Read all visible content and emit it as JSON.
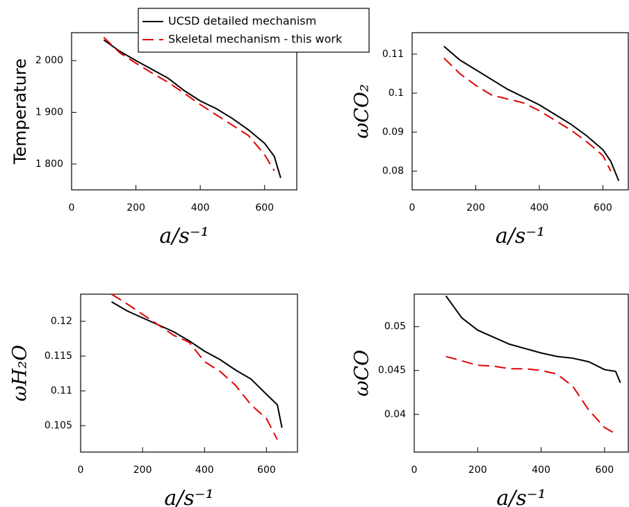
{
  "chart_data": [
    {
      "type": "line",
      "ylabel": "Temperature",
      "xlabel": "a/s⁻¹",
      "legend": "upper center",
      "x": [
        100,
        150,
        200,
        250,
        300,
        350,
        400,
        450,
        500,
        550,
        600,
        630,
        650
      ],
      "xlim": [
        0,
        700
      ],
      "xticks": [
        0,
        200,
        400,
        600
      ],
      "ylim": [
        1750,
        2054
      ],
      "yticks": [
        {
          "value": 1800,
          "label": "1 800"
        },
        {
          "value": 1900,
          "label": "1 900"
        },
        {
          "value": 2000,
          "label": "2 000"
        }
      ],
      "series": [
        {
          "name": "UCSD detailed mechanism",
          "color": "#000000",
          "dash": false,
          "values": [
            2040,
            2018,
            2000,
            1983,
            1966,
            1942,
            1922,
            1907,
            1888,
            1866,
            1840,
            1815,
            1773
          ]
        },
        {
          "name": "Skeletal mechanism - this work",
          "color": "#e00000",
          "dash": true,
          "values": [
            2045,
            2015,
            1995,
            1976,
            1958,
            1937,
            1915,
            1895,
            1875,
            1855,
            1818,
            1787,
            null
          ]
        }
      ]
    },
    {
      "type": "line",
      "ylabel": "ωCO₂",
      "xlabel": "a/s⁻¹",
      "x": [
        100,
        150,
        200,
        250,
        300,
        350,
        400,
        450,
        500,
        550,
        600,
        625,
        650
      ],
      "xlim": [
        0,
        680
      ],
      "xticks": [
        0,
        200,
        400,
        600
      ],
      "ylim": [
        0.0752,
        0.1155
      ],
      "yticks": [
        0.08,
        0.09,
        0.1,
        0.11
      ],
      "series": [
        {
          "color": "#000000",
          "dash": false,
          "values": [
            0.112,
            0.1085,
            0.106,
            0.1035,
            0.101,
            0.099,
            0.097,
            0.0945,
            0.092,
            0.089,
            0.0855,
            0.0825,
            0.0775
          ]
        },
        {
          "color": "#e00000",
          "dash": true,
          "values": [
            0.109,
            0.105,
            0.102,
            0.0995,
            0.0985,
            0.0975,
            0.0955,
            0.093,
            0.0905,
            0.0875,
            0.084,
            0.08,
            null
          ]
        }
      ]
    },
    {
      "type": "line",
      "ylabel": "ωH₂O",
      "xlabel": "a/s⁻¹",
      "x": [
        100,
        150,
        200,
        250,
        300,
        350,
        400,
        450,
        500,
        550,
        600,
        635,
        650
      ],
      "xlim": [
        0,
        700
      ],
      "xticks": [
        0,
        200,
        400,
        600
      ],
      "ylim": [
        0.1012,
        0.1239
      ],
      "yticks": [
        0.105,
        0.11,
        0.115,
        0.12
      ],
      "series": [
        {
          "color": "#000000",
          "dash": false,
          "values": [
            0.1228,
            0.1215,
            0.1205,
            0.1195,
            0.1185,
            0.1172,
            0.1157,
            0.1145,
            0.113,
            0.1117,
            0.1095,
            0.108,
            0.1047
          ]
        },
        {
          "color": "#e00000",
          "dash": true,
          "values": [
            0.1239,
            0.1225,
            0.121,
            0.1195,
            0.118,
            0.117,
            0.1142,
            0.1128,
            0.1108,
            0.108,
            0.106,
            0.103,
            null
          ]
        }
      ]
    },
    {
      "type": "line",
      "ylabel": "ωCO",
      "xlabel": "a/s⁻¹",
      "x": [
        100,
        150,
        200,
        250,
        300,
        350,
        400,
        450,
        500,
        550,
        600,
        635,
        650
      ],
      "xlim": [
        0,
        675
      ],
      "xticks": [
        0,
        200,
        400,
        600
      ],
      "ylim": [
        0.0357,
        0.0537
      ],
      "yticks": [
        0.04,
        0.045,
        0.05
      ],
      "series": [
        {
          "color": "#000000",
          "dash": false,
          "values": [
            0.0535,
            0.051,
            0.0496,
            0.0488,
            0.048,
            0.0475,
            0.047,
            0.0466,
            0.0464,
            0.046,
            0.0451,
            0.0449,
            0.0436
          ]
        },
        {
          "color": "#e00000",
          "dash": true,
          "values": [
            0.0466,
            0.0461,
            0.0456,
            0.0455,
            0.0452,
            0.0452,
            0.045,
            0.0446,
            0.0432,
            0.0405,
            0.0385,
            0.0378,
            null
          ]
        }
      ]
    }
  ]
}
